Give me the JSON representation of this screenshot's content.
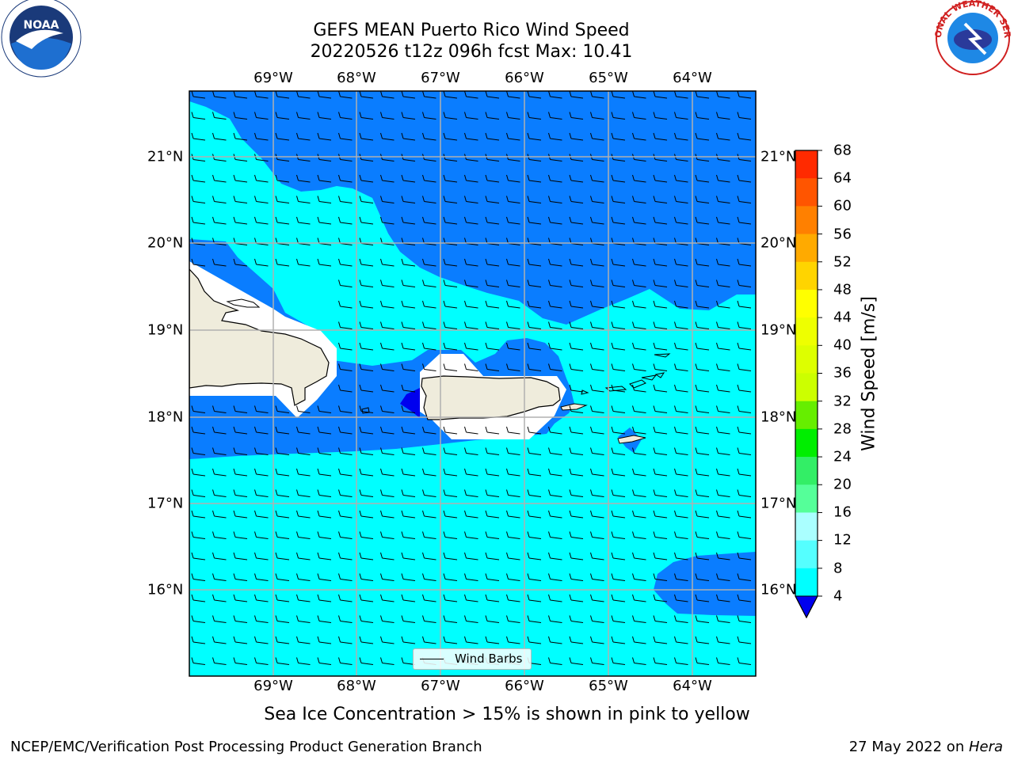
{
  "header": {
    "title_line1": "GEFS MEAN Puerto Rico Wind Speed",
    "title_line2": "20220526 t12z 096h fcst   Max: 10.41"
  },
  "map": {
    "lon_labels": [
      "69°W",
      "68°W",
      "67°W",
      "66°W",
      "65°W",
      "64°W"
    ],
    "lat_labels": [
      "21°N",
      "20°N",
      "19°N",
      "18°N",
      "17°N",
      "16°N"
    ],
    "legend_label": "Wind Barbs",
    "colors": {
      "land": "#efecdc",
      "speed_4_8": "#0a7dff",
      "speed_8_12": "#00ffff",
      "speed_below_4": "#0000ee",
      "grid": "#b0b0b0"
    }
  },
  "colorbar": {
    "label": "Wind Speed [m/s]",
    "ticks": [
      "68",
      "64",
      "60",
      "56",
      "52",
      "48",
      "44",
      "40",
      "36",
      "32",
      "28",
      "24",
      "20",
      "16",
      "12",
      "8",
      "4"
    ],
    "colors": [
      "#ff0000",
      "#ff2a00",
      "#ff5500",
      "#ff8000",
      "#ffaa00",
      "#ffd400",
      "#ffff00",
      "#eeff00",
      "#ddff00",
      "#ccff00",
      "#66ee00",
      "#00ee00",
      "#33ee66",
      "#55ff99",
      "#aaffff",
      "#55ffff",
      "#00ffff",
      "#0a7dff"
    ],
    "extend_color": "#0000ee"
  },
  "caption": "Sea Ice Concentration > 15% is shown in pink to yellow",
  "footer": {
    "left": "NCEP/EMC/Verification Post Processing Product Generation Branch",
    "right_prefix": "27 May 2022 on ",
    "right_host": "Hera"
  },
  "logos": {
    "noaa_text": "NOAA",
    "nws_text": "NATIONAL WEATHER SERVICE"
  }
}
